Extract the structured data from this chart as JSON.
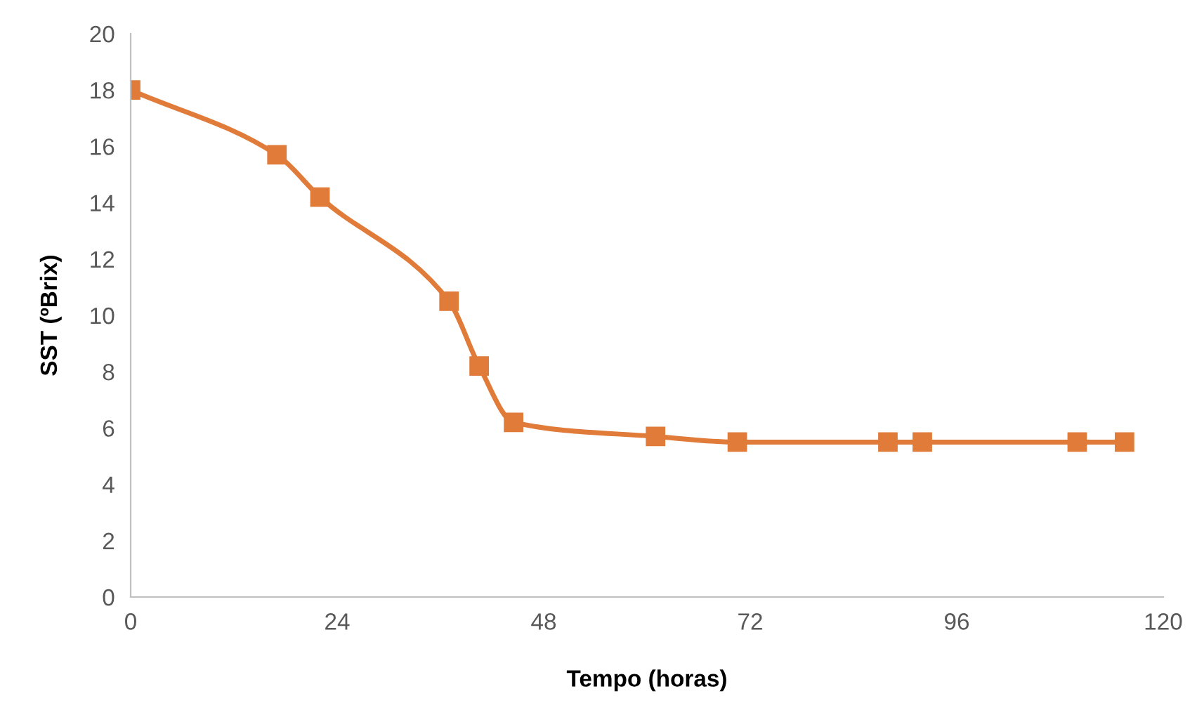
{
  "chart_data": {
    "type": "line",
    "xlabel": "Tempo (horas)",
    "ylabel": "SST (ºBrix)",
    "series": [
      {
        "color": "#e07b39",
        "x": [
          0,
          17,
          22,
          37,
          40.5,
          44.5,
          61,
          70.5,
          88,
          92,
          110,
          115.5
        ],
        "values": [
          18,
          15.7,
          14.2,
          10.5,
          8.2,
          6.2,
          5.7,
          5.5,
          5.5,
          5.5,
          5.5,
          5.5
        ]
      }
    ],
    "xlim": [
      0,
      120
    ],
    "xticks": [
      0,
      24,
      48,
      72,
      96,
      120
    ],
    "ylim": [
      0,
      20
    ],
    "yticks": [
      0,
      2,
      4,
      6,
      8,
      10,
      12,
      14,
      16,
      18,
      20
    ],
    "grid": false,
    "legend": false,
    "marker": "square",
    "line_style": "solid"
  }
}
